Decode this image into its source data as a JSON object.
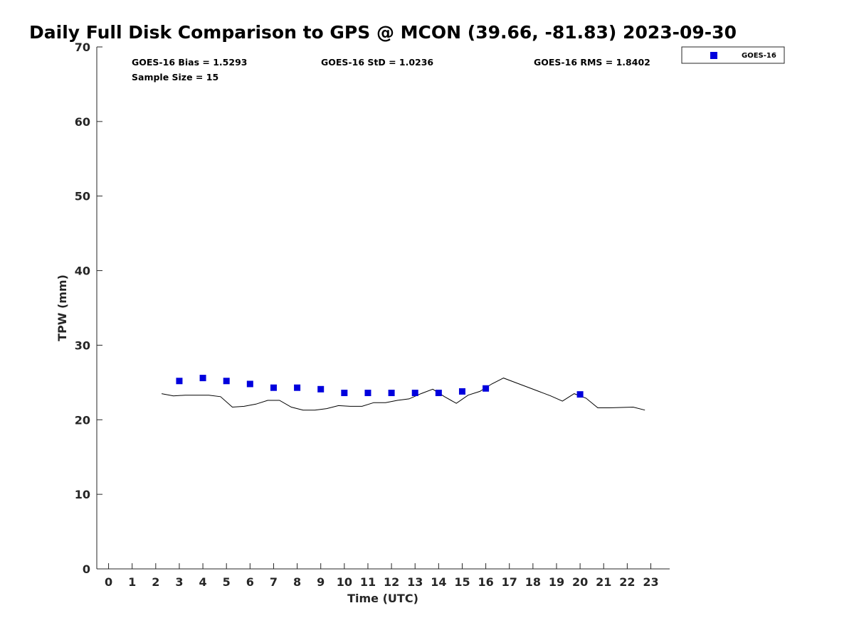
{
  "chart_data": {
    "type": "scatter",
    "title": "Daily Full Disk Comparison to GPS @ MCON (39.66, -81.83) 2023-09-30",
    "xlabel": "Time (UTC)",
    "ylabel": "TPW (mm)",
    "xlim": [
      -0.5,
      23.8
    ],
    "ylim": [
      0,
      70
    ],
    "x_ticks": [
      "0",
      "1",
      "2",
      "3",
      "4",
      "5",
      "6",
      "7",
      "8",
      "9",
      "10",
      "11",
      "12",
      "13",
      "14",
      "15",
      "16",
      "17",
      "18",
      "19",
      "20",
      "21",
      "22",
      "23"
    ],
    "y_ticks": [
      "0",
      "10",
      "20",
      "30",
      "40",
      "50",
      "60",
      "70"
    ],
    "grid": false,
    "legend_position": "outside-top-right",
    "stats": {
      "bias": "GOES-16 Bias = 1.5293",
      "std": "GOES-16 StD = 1.0236",
      "rms": "GOES-16 RMS = 1.8402",
      "sample_size": "Sample Size = 15"
    },
    "series": [
      {
        "name": "GOES-16",
        "kind": "markers",
        "marker": "square",
        "color": "#0000dd",
        "x": [
          3,
          4,
          5,
          6,
          7,
          8,
          9,
          10,
          11,
          12,
          13,
          14,
          15,
          16,
          20
        ],
        "y": [
          25.2,
          25.6,
          25.2,
          24.8,
          24.3,
          24.3,
          24.1,
          23.6,
          23.6,
          23.6,
          23.6,
          23.6,
          23.8,
          24.2,
          23.4
        ]
      },
      {
        "kind": "line",
        "color": "#000000",
        "x": [
          2.25,
          2.75,
          3.25,
          3.75,
          4.25,
          4.75,
          5.25,
          5.75,
          6.25,
          6.75,
          7.25,
          7.75,
          8.25,
          8.75,
          9.25,
          9.75,
          10.25,
          10.75,
          11.25,
          11.75,
          12.25,
          12.75,
          13.25,
          13.75,
          14.25,
          14.75,
          15.25,
          15.75,
          16.25,
          16.75,
          17.25,
          17.75,
          18.25,
          18.75,
          19.25,
          19.75,
          20.25,
          20.75,
          21.25,
          21.75,
          22.25,
          22.75
        ],
        "y": [
          23.5,
          23.2,
          23.3,
          23.3,
          23.3,
          23.1,
          21.7,
          21.8,
          22.1,
          22.6,
          22.6,
          21.7,
          21.3,
          21.3,
          21.5,
          21.9,
          21.8,
          21.8,
          22.3,
          22.3,
          22.6,
          22.8,
          23.5,
          24.1,
          23.1,
          22.2,
          23.3,
          23.8,
          24.8,
          25.6,
          25.0,
          24.4,
          23.8,
          23.2,
          22.5,
          23.5,
          22.9,
          21.6,
          21.6,
          21.65,
          21.7,
          21.3
        ]
      }
    ]
  }
}
